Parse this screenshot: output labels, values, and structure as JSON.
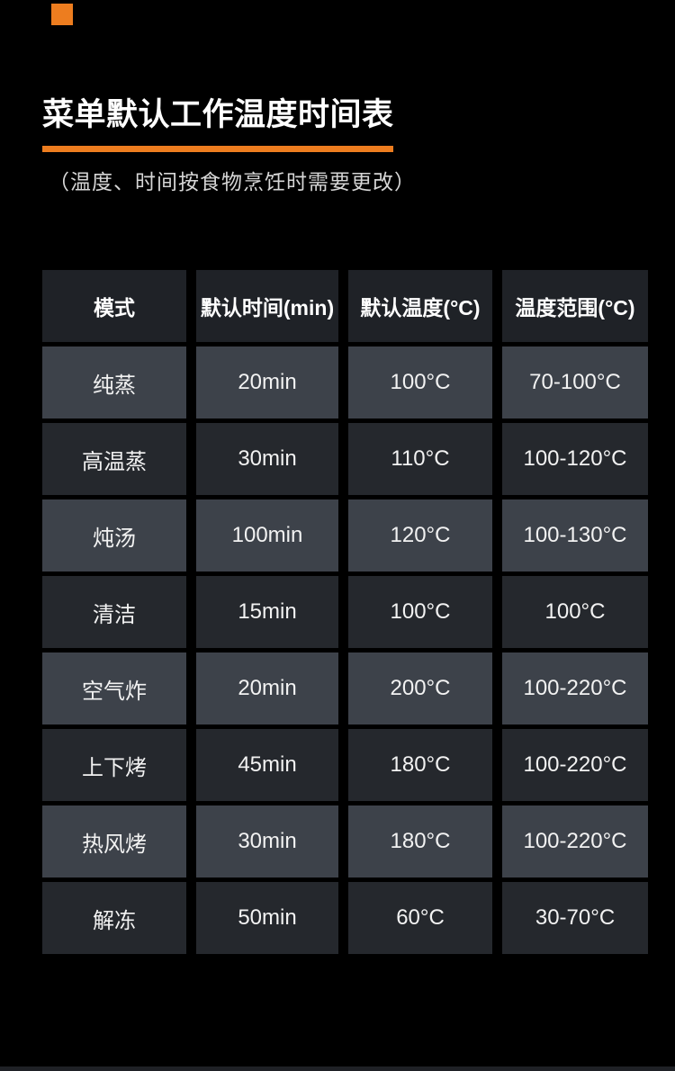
{
  "page": {
    "background": "#000000",
    "accent_color": "#ed7d1f",
    "colors": {
      "header_cell": "#1f2227",
      "row_light": "#3d424a",
      "row_dark": "#25282d",
      "title_text": "#ffffff",
      "subtitle_text": "#d6d6d6"
    }
  },
  "header": {
    "title": "菜单默认工作温度时间表",
    "subtitle": "（温度、时间按食物烹饪时需要更改）"
  },
  "table": {
    "columns": [
      "模式",
      "默认时间(min)",
      "默认温度(°C)",
      "温度范围(°C)"
    ],
    "rows": [
      {
        "mode": "纯蒸",
        "time": "20min",
        "temp": "100°C",
        "range": "70-100°C"
      },
      {
        "mode": "高温蒸",
        "time": "30min",
        "temp": "110°C",
        "range": "100-120°C"
      },
      {
        "mode": "炖汤",
        "time": "100min",
        "temp": "120°C",
        "range": "100-130°C"
      },
      {
        "mode": "清洁",
        "time": "15min",
        "temp": "100°C",
        "range": "100°C"
      },
      {
        "mode": "空气炸",
        "time": "20min",
        "temp": "200°C",
        "range": "100-220°C"
      },
      {
        "mode": "上下烤",
        "time": "45min",
        "temp": "180°C",
        "range": "100-220°C"
      },
      {
        "mode": "热风烤",
        "time": "30min",
        "temp": "180°C",
        "range": "100-220°C"
      },
      {
        "mode": "解冻",
        "time": "50min",
        "temp": "60°C",
        "range": "30-70°C"
      }
    ]
  }
}
